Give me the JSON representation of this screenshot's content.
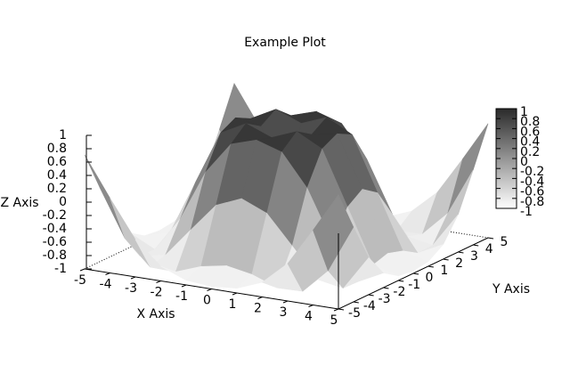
{
  "chart_data": {
    "type": "surface",
    "title": "Example Plot",
    "xlabel": "X Axis",
    "ylabel": "Y Axis",
    "zlabel": "Z Axis",
    "x": [
      -5,
      -4,
      -3,
      -2,
      -1,
      0,
      1,
      2,
      3,
      4,
      5
    ],
    "y": [
      -5,
      -4,
      -3,
      -2,
      -1,
      0,
      1,
      2,
      3,
      4,
      5
    ],
    "z": [
      [
        0.71,
        0.12,
        -0.44,
        -0.78,
        -0.93,
        -0.96,
        -0.93,
        -0.78,
        -0.44,
        0.12,
        0.71
      ],
      [
        0.12,
        -0.59,
        -0.96,
        -0.97,
        -0.83,
        -0.76,
        -0.83,
        -0.97,
        -0.96,
        -0.59,
        0.12
      ],
      [
        -0.44,
        -0.96,
        -0.89,
        -0.45,
        -0.02,
        0.14,
        -0.02,
        -0.45,
        -0.89,
        -0.96,
        -0.44
      ],
      [
        -0.78,
        -0.97,
        -0.45,
        0.31,
        0.79,
        0.91,
        0.79,
        0.31,
        -0.45,
        -0.97,
        -0.78
      ],
      [
        -0.93,
        -0.83,
        -0.02,
        0.79,
        0.99,
        0.84,
        0.99,
        0.79,
        -0.02,
        -0.83,
        -0.93
      ],
      [
        -0.96,
        -0.76,
        0.14,
        0.91,
        0.84,
        0,
        0.84,
        0.91,
        0.14,
        -0.76,
        -0.96
      ],
      [
        -0.93,
        -0.83,
        -0.02,
        0.79,
        0.99,
        0.84,
        0.99,
        0.79,
        -0.02,
        -0.83,
        -0.93
      ],
      [
        -0.78,
        -0.97,
        -0.45,
        0.31,
        0.79,
        0.91,
        0.79,
        0.31,
        -0.45,
        -0.97,
        -0.78
      ],
      [
        -0.44,
        -0.96,
        -0.89,
        -0.45,
        -0.02,
        0.14,
        -0.02,
        -0.45,
        -0.89,
        -0.96,
        -0.44
      ],
      [
        0.12,
        -0.59,
        -0.96,
        -0.97,
        -0.83,
        -0.76,
        -0.83,
        -0.97,
        -0.96,
        -0.59,
        0.12
      ],
      [
        0.71,
        0.12,
        -0.44,
        -0.78,
        -0.93,
        -0.96,
        -0.93,
        -0.78,
        -0.44,
        0.12,
        0.71
      ]
    ],
    "xlim": [
      -5,
      5
    ],
    "ylim": [
      -5,
      5
    ],
    "zlim": [
      -1,
      1
    ],
    "xticks": [
      -5,
      -4,
      -3,
      -2,
      -1,
      0,
      1,
      2,
      3,
      4,
      5
    ],
    "yticks": [
      -5,
      -4,
      -3,
      -2,
      -1,
      0,
      1,
      2,
      3,
      4,
      5
    ],
    "zticks": [
      -1,
      -0.8,
      -0.6,
      -0.4,
      -0.2,
      0,
      0.2,
      0.4,
      0.6,
      0.8,
      1
    ],
    "cblim": [
      -1,
      1
    ],
    "cbticks": [
      -1,
      -0.8,
      -0.6,
      -0.4,
      -0.2,
      0,
      0.2,
      0.4,
      0.6,
      0.8,
      1
    ],
    "colormap": {
      "low": "#ffffff",
      "high": "#2a2a2a"
    }
  }
}
